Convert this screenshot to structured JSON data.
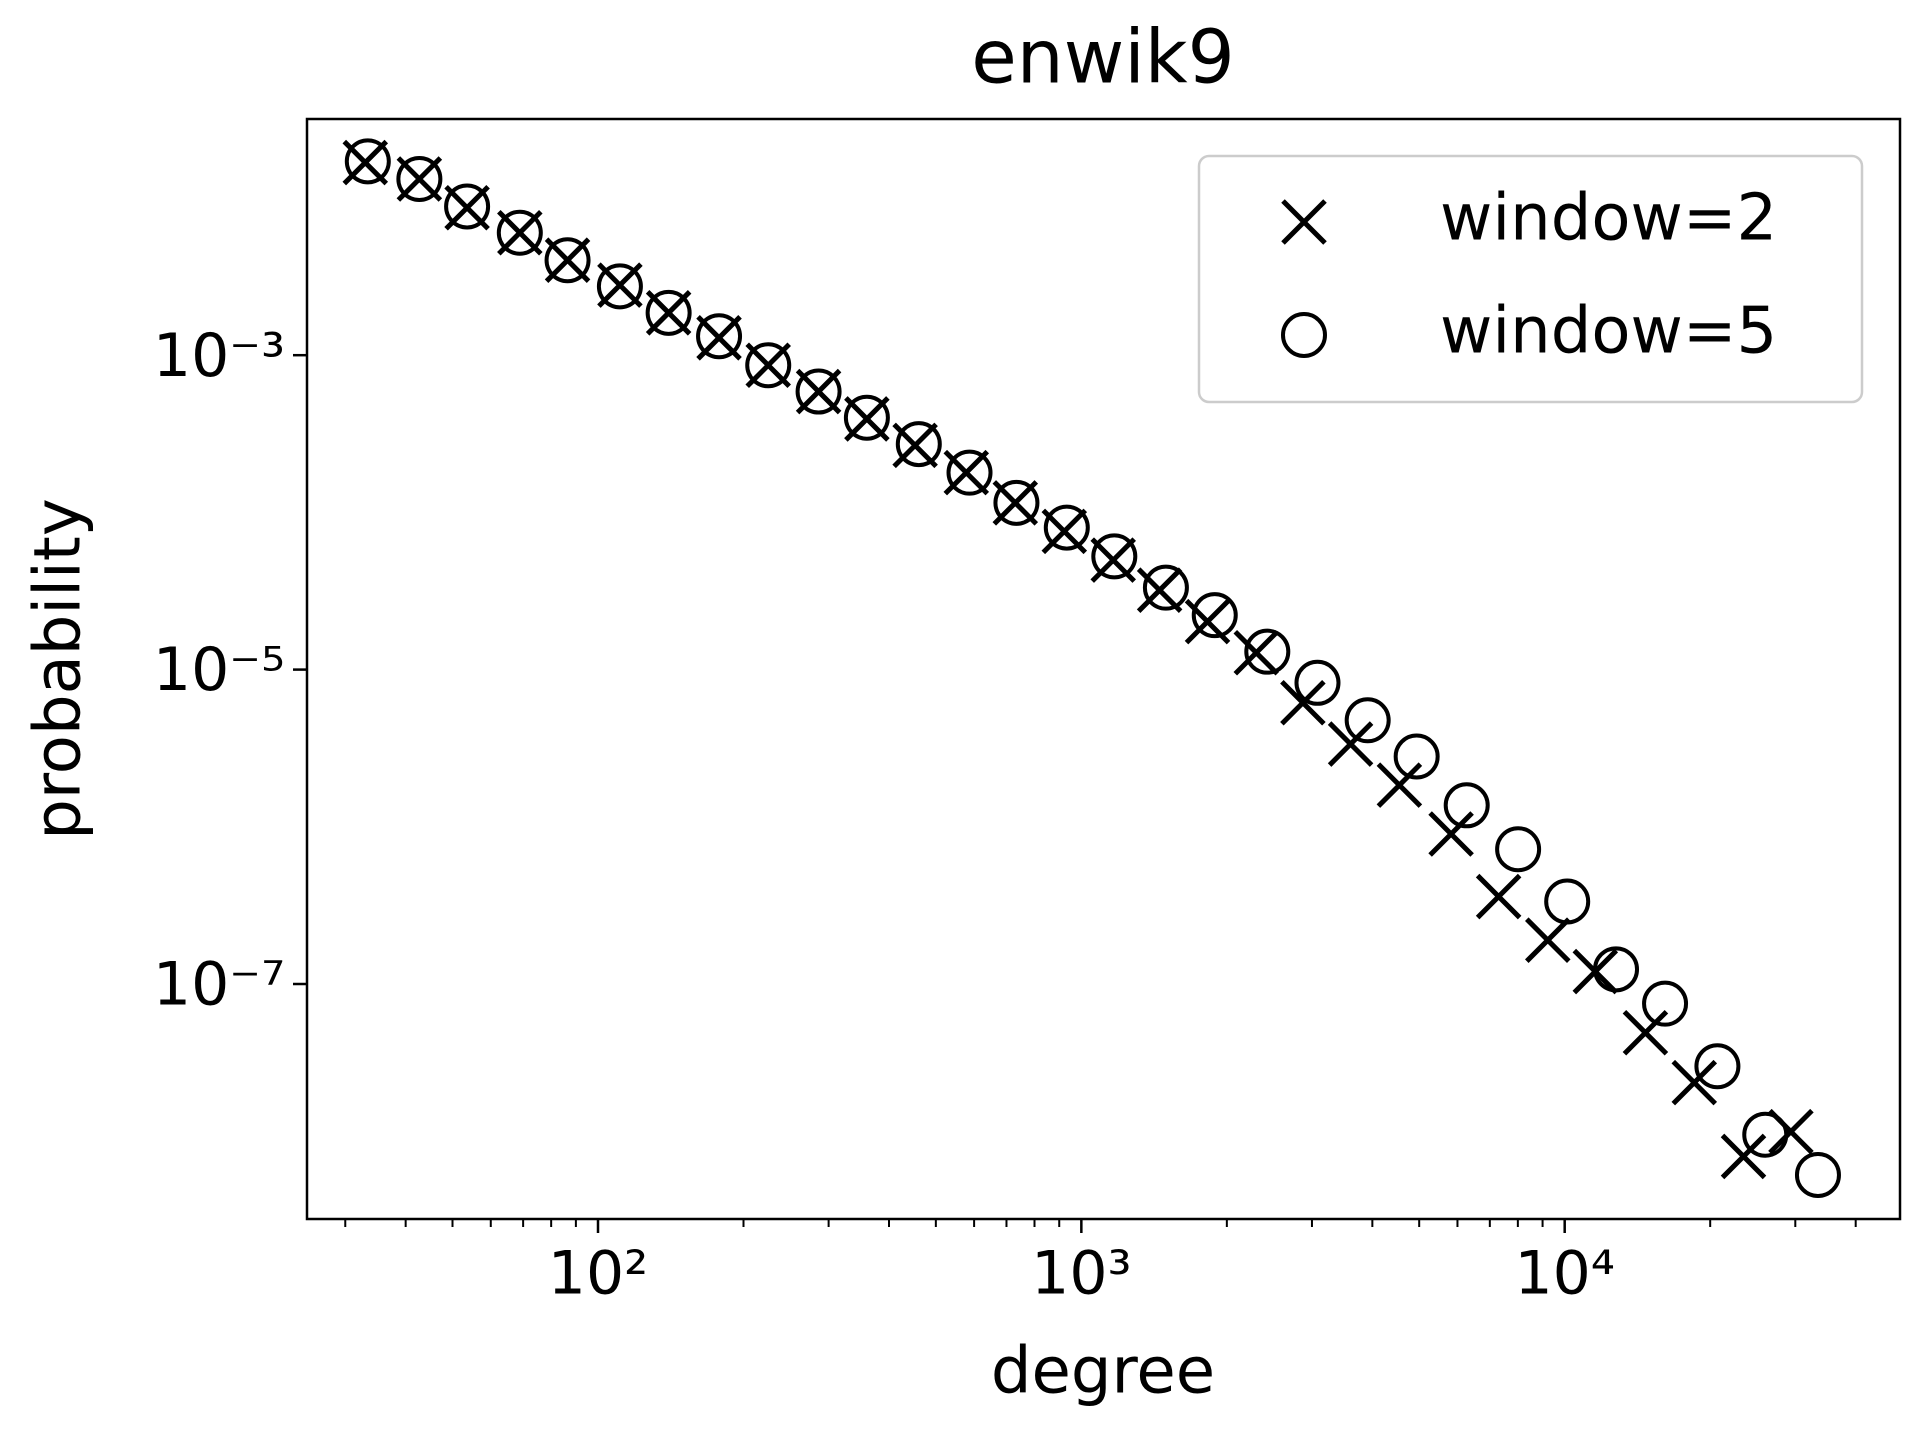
{
  "chart_data": {
    "type": "scatter",
    "title": "enwik9",
    "x_label": "degree",
    "y_label": "probability",
    "log_x": true,
    "log_y": true,
    "grid": false,
    "legend_position": "upper right",
    "xlim": [
      25,
      49400
    ],
    "ylim": [
      3.2e-09,
      0.0318
    ],
    "xticks": [
      {
        "value": 100,
        "label": "10²"
      },
      {
        "value": 1000,
        "label": "10³"
      },
      {
        "value": 10000,
        "label": "10⁴"
      }
    ],
    "yticks": [
      {
        "value": 0.001,
        "label": "10⁻³"
      },
      {
        "value": 1e-05,
        "label": "10⁻⁵"
      },
      {
        "value": 1e-07,
        "label": "10⁻⁷"
      }
    ],
    "series": [
      {
        "name": "window=2",
        "marker": "x",
        "color": "#000000",
        "x": [
          33,
          42.7,
          53.6,
          68.9,
          86.5,
          111,
          140,
          178,
          225,
          286,
          360,
          453,
          578,
          730,
          922,
          1164,
          1452,
          1824,
          2301,
          2873,
          3606,
          4550,
          5821,
          7300,
          9226,
          11570,
          14690,
          18540,
          23440,
          29380
        ],
        "values": [
          0.0168,
          0.0132,
          0.00867,
          0.00601,
          0.00402,
          0.00279,
          0.00186,
          0.00129,
          0.000863,
          0.000587,
          0.000393,
          0.000267,
          0.000179,
          0.000115,
          7.57e-05,
          4.97e-05,
          3.2e-05,
          2.02e-05,
          1.28e-05,
          6.15e-06,
          3.36e-06,
          1.84e-06,
          9e-07,
          3.6e-07,
          1.9e-07,
          1.2e-07,
          4.9e-08,
          2.36e-08,
          8e-09,
          1.15e-08
        ]
      },
      {
        "name": "window=5",
        "marker": "o",
        "color": "#000000",
        "x": [
          33.4,
          42.7,
          53.6,
          68.9,
          86.5,
          111,
          140,
          178,
          225,
          286,
          360,
          461,
          587,
          734,
          933,
          1170,
          1496,
          1888,
          2425,
          3080,
          3912,
          4940,
          6270,
          8010,
          10120,
          12770,
          16130,
          20700,
          26000,
          33420
        ],
        "values": [
          0.0171,
          0.0132,
          0.00883,
          0.00601,
          0.00402,
          0.00274,
          0.00186,
          0.00132,
          0.000863,
          0.000587,
          0.0004,
          0.000272,
          0.000179,
          0.000115,
          8e-05,
          5.25e-05,
          3.32e-05,
          2.22e-05,
          1.3e-05,
          8.24e-06,
          4.76e-06,
          2.8e-06,
          1.37e-06,
          7.2e-07,
          3.35e-07,
          1.24e-07,
          7.5e-08,
          3e-08,
          1.1e-08,
          6.1e-09
        ]
      }
    ]
  }
}
